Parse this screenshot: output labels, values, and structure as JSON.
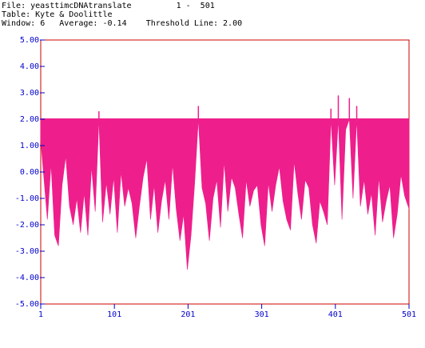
{
  "header": {
    "file_label": "File:",
    "file_name": "yeasttimcDNAtranslate",
    "range": "1 -  501",
    "table_label": "Table:",
    "table_name": "Kyte & Doolittle",
    "window_label": "Window:",
    "window_value": "6",
    "average_label": "Average:",
    "average_value": "-0.14",
    "threshold_label": "Threshold Line:",
    "threshold_value": "2.00"
  },
  "colors": {
    "plot": "#ee1f8c",
    "frame": "#cc0000",
    "axis_text": "#0000cc",
    "header_text": "#000000"
  },
  "chart_data": {
    "type": "area",
    "title": "",
    "xlabel": "",
    "ylabel": "",
    "xlim": [
      1,
      501
    ],
    "ylim": [
      -5.0,
      5.0
    ],
    "threshold": 2.0,
    "grid": false,
    "y_ticks": [
      "5.00",
      "4.00",
      "3.00",
      "2.00",
      "1.00",
      "0.00",
      "-1.00",
      "-2.00",
      "-3.00",
      "-4.00",
      "-5.00"
    ],
    "x_ticks": [
      "1",
      "101",
      "201",
      "301",
      "401",
      "501"
    ],
    "series": [
      {
        "x": [
          1,
          10,
          15,
          20,
          25,
          30,
          35,
          40,
          45,
          50,
          55,
          60,
          65,
          70,
          75,
          80,
          85,
          90,
          95,
          100,
          105,
          110,
          115,
          120,
          125,
          130,
          135,
          140,
          145,
          150,
          155,
          160,
          165,
          170,
          175,
          180,
          185,
          190,
          195,
          200,
          205,
          210,
          215,
          220,
          225,
          230,
          235,
          240,
          245,
          250,
          255,
          260,
          265,
          270,
          275,
          280,
          285,
          290,
          295,
          300,
          305,
          310,
          315,
          320,
          325,
          330,
          335,
          340,
          345,
          350,
          355,
          360,
          365,
          370,
          375,
          380,
          385,
          390,
          395,
          400,
          405,
          410,
          415,
          420,
          425,
          430,
          435,
          440,
          445,
          450,
          455,
          460,
          465,
          470,
          475,
          480,
          485,
          490,
          495,
          501
        ],
        "values": [
          1.2,
          -1.8,
          0.3,
          -2.4,
          -2.8,
          -0.5,
          0.6,
          -1.3,
          -2.0,
          -1.0,
          -2.3,
          -0.8,
          -2.4,
          0.2,
          -1.5,
          2.3,
          -1.9,
          -0.4,
          -1.6,
          -0.2,
          -2.3,
          0.0,
          -1.3,
          -0.6,
          -1.2,
          -2.5,
          -1.3,
          -0.2,
          0.5,
          -1.8,
          -0.5,
          -2.3,
          -1.1,
          -0.3,
          -1.8,
          0.3,
          -1.4,
          -2.6,
          -1.6,
          -3.7,
          -2.4,
          -0.4,
          2.5,
          -0.6,
          -1.2,
          -2.6,
          -1.0,
          -0.3,
          -2.1,
          0.4,
          -1.5,
          -0.2,
          -0.6,
          -1.6,
          -2.5,
          -0.3,
          -1.3,
          -0.7,
          -0.5,
          -2.0,
          -2.8,
          -0.4,
          -1.5,
          -0.5,
          0.2,
          -1.1,
          -1.8,
          -2.2,
          0.4,
          -0.8,
          -1.8,
          -0.3,
          -0.6,
          -2.0,
          -2.7,
          -1.1,
          -1.5,
          -2.0,
          2.4,
          -0.5,
          2.9,
          -1.8,
          1.6,
          2.8,
          -1.0,
          2.5,
          -1.3,
          -0.3,
          -1.6,
          -0.8,
          -2.4,
          -0.2,
          -1.9,
          -1.1,
          -0.5,
          -2.5,
          -1.6,
          -0.1,
          -0.9,
          -1.4
        ]
      }
    ]
  }
}
